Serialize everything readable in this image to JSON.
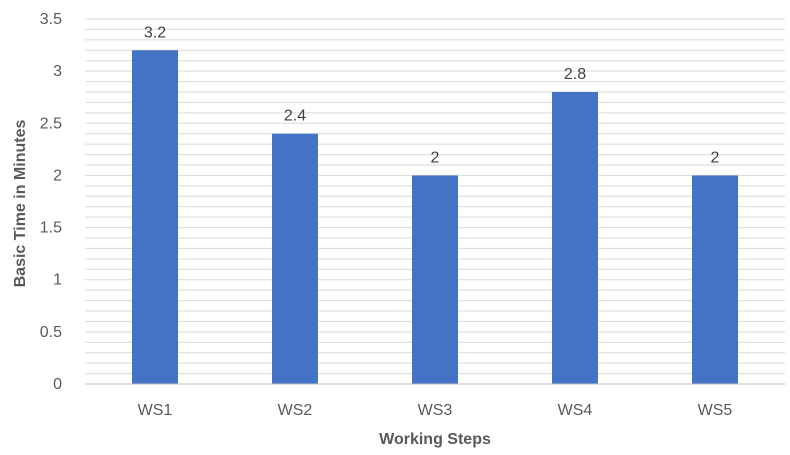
{
  "chart_data": {
    "type": "bar",
    "title": "",
    "xlabel": "Working Steps",
    "ylabel": "Basic Time in Minutes",
    "categories": [
      "WS1",
      "WS2",
      "WS3",
      "WS4",
      "WS5"
    ],
    "values": [
      3.2,
      2.4,
      2,
      2.8,
      2
    ],
    "data_labels": [
      "3.2",
      "2.4",
      "2",
      "2.8",
      "2"
    ],
    "ylim": [
      0,
      3.5
    ],
    "y_ticks": [
      0,
      0.5,
      1,
      1.5,
      2,
      2.5,
      3,
      3.5
    ],
    "y_tick_labels": [
      "0",
      "0.5",
      "1",
      "1.5",
      "2",
      "2.5",
      "3",
      "3.5"
    ],
    "grid": true,
    "minor_grid_step": 0.1,
    "legend": "none",
    "colors": {
      "bar": "#4472C4",
      "gridline": "#D9D9D9",
      "axis": "#BFBFBF"
    }
  }
}
